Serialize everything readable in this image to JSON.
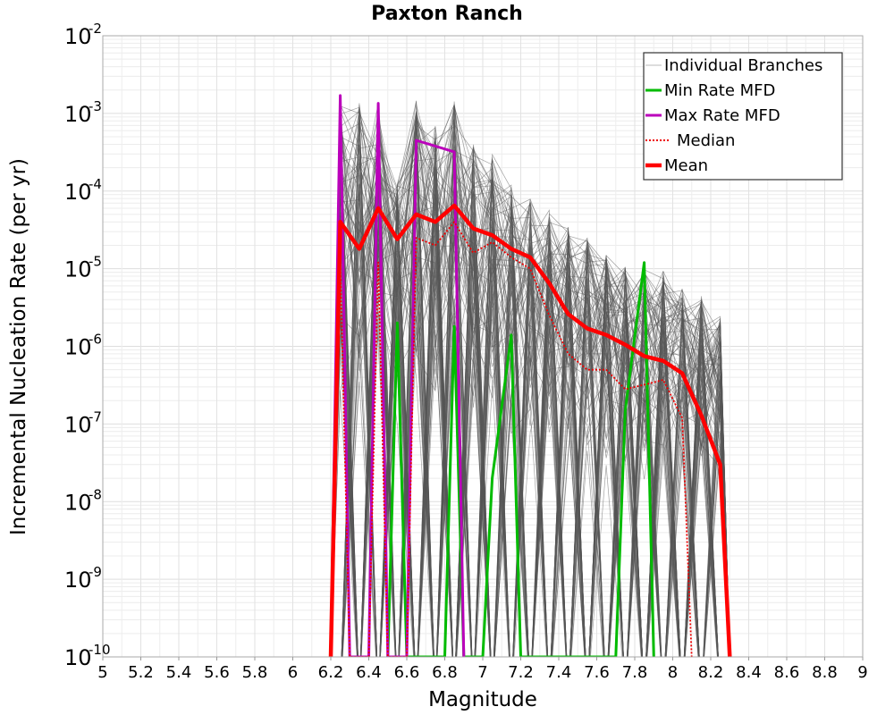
{
  "chart_data": {
    "type": "line",
    "title": "Paxton Ranch",
    "xlabel": "Magnitude",
    "ylabel": "Incremental Nucleation Rate (per yr)",
    "xlim": [
      5,
      9
    ],
    "ylim": [
      1e-10,
      0.01
    ],
    "yscale": "log",
    "grid": true,
    "legend_position": "top-right",
    "x_ticks": [
      "5",
      "5.2",
      "5.4",
      "5.6",
      "5.8",
      "6",
      "6.2",
      "6.4",
      "6.6",
      "6.8",
      "7",
      "7.2",
      "7.4",
      "7.6",
      "7.8",
      "8",
      "8.2",
      "8.4",
      "8.6",
      "8.8",
      "9"
    ],
    "y_ticks": [
      {
        "base": "10",
        "exp": "-10"
      },
      {
        "base": "10",
        "exp": "-9"
      },
      {
        "base": "10",
        "exp": "-8"
      },
      {
        "base": "10",
        "exp": "-7"
      },
      {
        "base": "10",
        "exp": "-6"
      },
      {
        "base": "10",
        "exp": "-5"
      },
      {
        "base": "10",
        "exp": "-4"
      },
      {
        "base": "10",
        "exp": "-3"
      },
      {
        "base": "10",
        "exp": "-2"
      }
    ],
    "series": [
      {
        "name": "Individual Branches",
        "color": "#555555",
        "style": "thin",
        "x": [
          6.2,
          6.25,
          6.35,
          6.45,
          6.55,
          6.65,
          6.75,
          6.85,
          6.95,
          7.05,
          7.15,
          7.25,
          7.35,
          7.45,
          7.55,
          7.65,
          7.75,
          7.85,
          7.95,
          8.05,
          8.15,
          8.25,
          8.3
        ],
        "upper": [
          1e-10,
          0.0014,
          0.0014,
          0.0014,
          0.00013,
          0.0016,
          0.0007,
          0.0015,
          0.0004,
          0.0003,
          0.00012,
          8e-05,
          6e-05,
          3.5e-05,
          2.5e-05,
          1.6e-05,
          1.1e-05,
          1e-05,
          1e-05,
          6e-06,
          5e-06,
          2.5e-06,
          1e-10
        ],
        "lower": [
          1e-10,
          1e-10,
          1e-10,
          1e-10,
          1e-10,
          1e-10,
          1e-10,
          1e-10,
          1e-10,
          1e-10,
          1e-10,
          1e-10,
          1e-10,
          1e-10,
          1e-10,
          1e-10,
          1e-10,
          1e-10,
          1e-10,
          1e-10,
          1e-10,
          1e-10,
          1e-10
        ]
      },
      {
        "name": "Min Rate MFD",
        "color": "#00bb00",
        "points": [
          [
            6.5,
            1e-10
          ],
          [
            6.55,
            2e-06
          ],
          [
            6.6,
            1e-10
          ],
          [
            6.8,
            1e-10
          ],
          [
            6.85,
            1.8e-06
          ],
          [
            6.9,
            1e-10
          ],
          [
            7.0,
            1e-10
          ],
          [
            7.05,
            2e-08
          ],
          [
            7.15,
            1.4e-06
          ],
          [
            7.2,
            1e-10
          ],
          [
            7.7,
            1e-10
          ],
          [
            7.75,
            1.5e-07
          ],
          [
            7.85,
            1.2e-05
          ],
          [
            7.9,
            1e-10
          ]
        ]
      },
      {
        "name": "Max Rate MFD",
        "color": "#bb00bb",
        "points": [
          [
            6.2,
            1e-10
          ],
          [
            6.25,
            0.0017
          ],
          [
            6.3,
            1e-10
          ],
          [
            6.4,
            1e-10
          ],
          [
            6.45,
            0.00135
          ],
          [
            6.5,
            1e-10
          ],
          [
            6.6,
            1e-10
          ],
          [
            6.65,
            0.00045
          ],
          [
            6.85,
            0.00032
          ],
          [
            6.9,
            1e-10
          ]
        ]
      },
      {
        "name": "Median",
        "color": "#ee0000",
        "style": "dotted",
        "points": [
          [
            6.2,
            1e-10
          ],
          [
            6.25,
            1.2e-05
          ],
          [
            6.3,
            1e-10
          ],
          [
            6.4,
            1e-10
          ],
          [
            6.45,
            1.2e-05
          ],
          [
            6.5,
            1e-10
          ],
          [
            6.6,
            1e-10
          ],
          [
            6.65,
            2.5e-05
          ],
          [
            6.75,
            2e-05
          ],
          [
            6.85,
            4e-05
          ],
          [
            6.95,
            1.6e-05
          ],
          [
            7.05,
            2.2e-05
          ],
          [
            7.15,
            1.4e-05
          ],
          [
            7.25,
            1e-05
          ],
          [
            7.35,
            2.5e-06
          ],
          [
            7.45,
            8e-07
          ],
          [
            7.55,
            5e-07
          ],
          [
            7.65,
            5e-07
          ],
          [
            7.75,
            2.8e-07
          ],
          [
            7.85,
            3.2e-07
          ],
          [
            7.95,
            3.7e-07
          ],
          [
            8.05,
            1.2e-07
          ],
          [
            8.1,
            1e-10
          ]
        ]
      },
      {
        "name": "Mean",
        "color": "#ff0000",
        "style": "thick",
        "points": [
          [
            6.2,
            1e-10
          ],
          [
            6.25,
            4e-05
          ],
          [
            6.35,
            1.8e-05
          ],
          [
            6.45,
            6e-05
          ],
          [
            6.55,
            2.4e-05
          ],
          [
            6.65,
            5e-05
          ],
          [
            6.75,
            4e-05
          ],
          [
            6.85,
            6.5e-05
          ],
          [
            6.95,
            3.3e-05
          ],
          [
            7.05,
            2.7e-05
          ],
          [
            7.15,
            1.8e-05
          ],
          [
            7.25,
            1.4e-05
          ],
          [
            7.35,
            6.5e-06
          ],
          [
            7.45,
            2.6e-06
          ],
          [
            7.55,
            1.7e-06
          ],
          [
            7.65,
            1.4e-06
          ],
          [
            7.75,
            1.05e-06
          ],
          [
            7.85,
            7.5e-07
          ],
          [
            7.95,
            6.5e-07
          ],
          [
            8.05,
            4.5e-07
          ],
          [
            8.15,
            1.3e-07
          ],
          [
            8.25,
            3e-08
          ],
          [
            8.3,
            1e-10
          ]
        ]
      }
    ]
  }
}
